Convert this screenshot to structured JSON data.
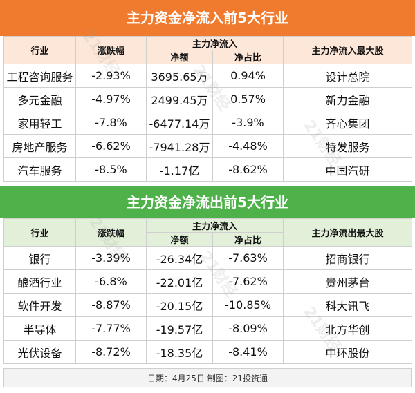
{
  "inflow": {
    "title": "主力资金净流入前5大行业",
    "headers": {
      "industry": "行业",
      "change": "涨跌幅",
      "main_flow": "主力净流入",
      "amount": "净额",
      "ratio": "净占比",
      "top_stock": "主力净流入最大股"
    },
    "rows": [
      {
        "industry": "工程咨询服务",
        "change": "-2.93%",
        "amount": "3695.65万",
        "ratio": "0.94%",
        "stock": "设计总院"
      },
      {
        "industry": "多元金融",
        "change": "-4.97%",
        "amount": "2499.45万",
        "ratio": "0.57%",
        "stock": "新力金融"
      },
      {
        "industry": "家用轻工",
        "change": "-7.8%",
        "amount": "-6477.14万",
        "ratio": "-3.9%",
        "stock": "齐心集团"
      },
      {
        "industry": "房地产服务",
        "change": "-6.62%",
        "amount": "-7941.28万",
        "ratio": "-4.48%",
        "stock": "特发服务"
      },
      {
        "industry": "汽车服务",
        "change": "-8.5%",
        "amount": "-1.17亿",
        "ratio": "-8.62%",
        "stock": "中国汽研"
      }
    ]
  },
  "outflow": {
    "title": "主力资金净流出前5大行业",
    "headers": {
      "industry": "行业",
      "change": "涨跌幅",
      "main_flow": "主力净流入",
      "amount": "净额",
      "ratio": "净占比",
      "top_stock": "主力净流出最大股"
    },
    "rows": [
      {
        "industry": "银行",
        "change": "-3.39%",
        "amount": "-26.34亿",
        "ratio": "-7.63%",
        "stock": "招商银行"
      },
      {
        "industry": "酿酒行业",
        "change": "-6.8%",
        "amount": "-22.01亿",
        "ratio": "-7.62%",
        "stock": "贵州茅台"
      },
      {
        "industry": "软件开发",
        "change": "-8.87%",
        "amount": "-20.15亿",
        "ratio": "-10.85%",
        "stock": "科大讯飞"
      },
      {
        "industry": "半导体",
        "change": "-7.77%",
        "amount": "-19.57亿",
        "ratio": "-8.09%",
        "stock": "北方华创"
      },
      {
        "industry": "光伏设备",
        "change": "-8.72%",
        "amount": "-18.35亿",
        "ratio": "-8.41%",
        "stock": "中环股份"
      }
    ]
  },
  "footer": "日期：4月25日 制图：21投资通",
  "watermark": "21财经",
  "colors": {
    "inflow_banner": "#f07b2e",
    "outflow_banner": "#4fb14a"
  }
}
